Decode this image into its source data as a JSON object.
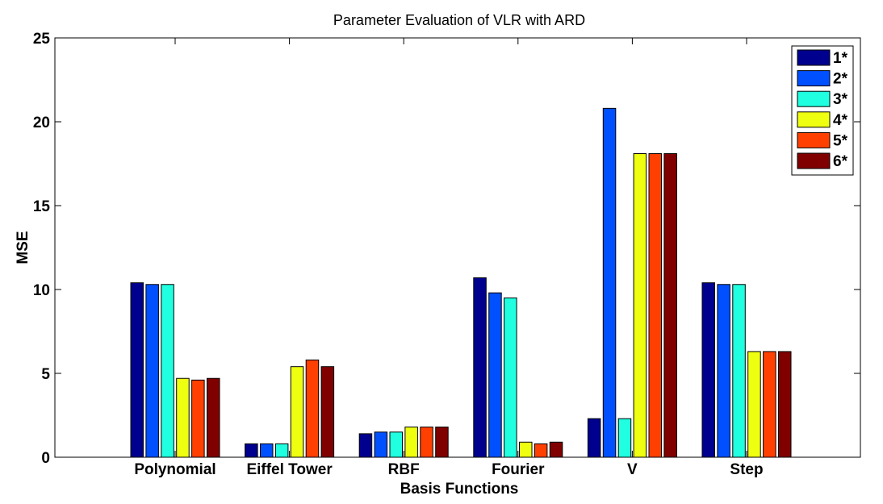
{
  "chart_data": {
    "type": "bar",
    "title": "Parameter Evaluation of VLR with ARD",
    "xlabel": "Basis Functions",
    "ylabel": "MSE",
    "ylim": [
      0,
      25
    ],
    "yticks": [
      0,
      5,
      10,
      15,
      20,
      25
    ],
    "categories": [
      "Polynomial",
      "Eiffel Tower",
      "RBF",
      "Fourier",
      "V",
      "Step"
    ],
    "legend_position": "top-right",
    "grid": false,
    "series": [
      {
        "name": "1*",
        "color": "#00008F",
        "values": [
          10.4,
          0.8,
          1.4,
          10.7,
          2.3,
          10.4
        ]
      },
      {
        "name": "2*",
        "color": "#0050FF",
        "values": [
          10.3,
          0.8,
          1.5,
          9.8,
          20.8,
          10.3
        ]
      },
      {
        "name": "3*",
        "color": "#20FFDF",
        "values": [
          10.3,
          0.8,
          1.5,
          9.5,
          2.3,
          10.3
        ]
      },
      {
        "name": "4*",
        "color": "#EFFF10",
        "values": [
          4.7,
          5.4,
          1.8,
          0.9,
          18.1,
          6.3
        ]
      },
      {
        "name": "5*",
        "color": "#FF4000",
        "values": [
          4.6,
          5.8,
          1.8,
          0.8,
          18.1,
          6.3
        ]
      },
      {
        "name": "6*",
        "color": "#800000",
        "values": [
          4.7,
          5.4,
          1.8,
          0.9,
          18.1,
          6.3
        ]
      }
    ]
  }
}
